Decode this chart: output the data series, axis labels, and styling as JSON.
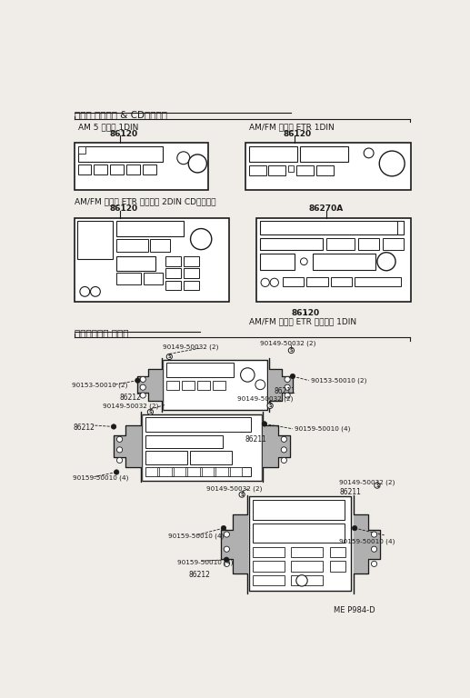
{
  "bg_color": "#f0ede8",
  "black": "#1a1a1a",
  "gray_bracket": "#888888",
  "title_section1": "ラジオ レシーバ & CDプレーヤ",
  "title_section2": "セッテイング パーツ",
  "radio1_label": "AM 5 ボタン 1DIN",
  "radio1_partno": "86120",
  "radio2_label": "AM/FM マルチ ETR 1DIN",
  "radio2_partno": "86120",
  "radio3_label": "AM/FM マルチ ETR カセット 2DIN CDプレーヤ",
  "radio3_partno": "86120",
  "radio4_label": "AM/FM マルチ ETR カセット 1DIN",
  "radio4_partno": "86120",
  "radio4_partno2": "86270A",
  "page_ref": "ME P984-D",
  "p_bolt_s": "90149-50032 (2)",
  "p_bolt_h2": "90153-50010 (2)",
  "p_bolt_h4": "90159-50010 (4)",
  "p_br_r": "86211",
  "p_br_l": "86212"
}
